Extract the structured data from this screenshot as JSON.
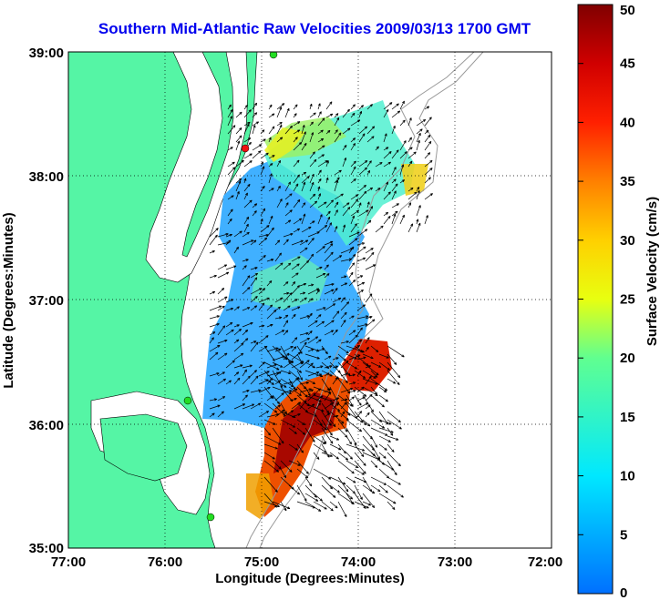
{
  "title": "Southern Mid-Atlantic Raw Velocities 2009/03/13 1700 GMT",
  "axes": {
    "xlabel": "Longitude (Degrees:Minutes)",
    "ylabel": "Latitude (Degrees:Minutes)",
    "x_ticks": [
      "77:00",
      "76:00",
      "75:00",
      "74:00",
      "73:00",
      "72:00"
    ],
    "y_ticks": [
      "39:00",
      "38:00",
      "37:00",
      "36:00",
      "35:00"
    ],
    "xlim": [
      -77,
      -72
    ],
    "ylim": [
      35,
      39
    ]
  },
  "colorbar": {
    "label": "Surface Velocity (cm/s)",
    "ticks": [
      "50",
      "45",
      "40",
      "35",
      "30",
      "25",
      "20",
      "15",
      "10",
      "5",
      "0"
    ],
    "range": [
      0,
      50
    ]
  },
  "colors": {
    "land": "#55f5a5",
    "water": "#ffffff",
    "title": "#0000ee",
    "station_red": "#ee1111",
    "station_green": "#22dd22"
  }
}
